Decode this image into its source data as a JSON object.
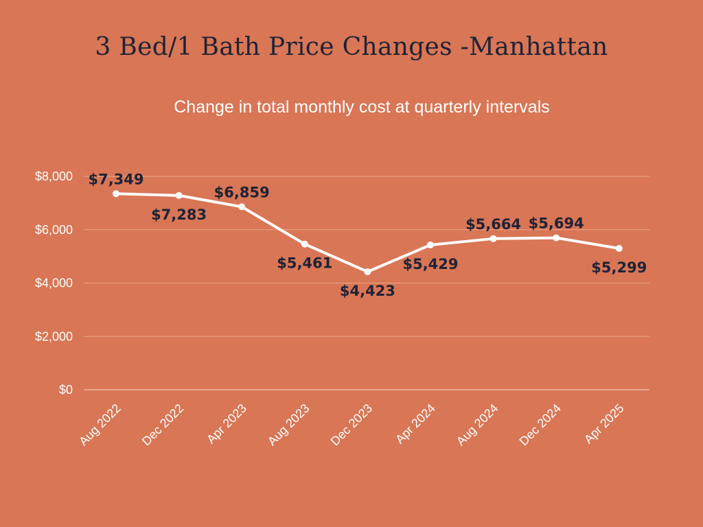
{
  "chart_data": {
    "type": "line",
    "title": "3 Bed/1 Bath Price Changes -Manhattan",
    "subtitle": "Change in total monthly cost at quarterly intervals",
    "xlabel": "",
    "ylabel": "",
    "categories": [
      "Aug 2022",
      "Dec 2022",
      "Apr 2023",
      "Aug 2023",
      "Dec 2023",
      "Apr 2024",
      "Aug 2024",
      "Dec 2024",
      "Apr 2025"
    ],
    "values": [
      7349,
      7283,
      6859,
      5461,
      4423,
      5429,
      5664,
      5694,
      5299
    ],
    "data_labels": [
      "$7,349",
      "$7,283",
      "$6,859",
      "$5,461",
      "$4,423",
      "$5,429",
      "$5,664",
      "$5,694",
      "$5,299"
    ],
    "label_positions": [
      "above",
      "below",
      "above",
      "below",
      "below",
      "below",
      "above",
      "above",
      "below"
    ],
    "yticks": [
      0,
      2000,
      4000,
      6000,
      8000
    ],
    "ytick_labels": [
      "$0",
      "$2,000",
      "$4,000",
      "$6,000",
      "$8,000"
    ],
    "ylim": [
      0,
      8000
    ],
    "grid": true,
    "legend": "none",
    "colors": {
      "background": "#D87655",
      "line": "#FFFFFF",
      "title": "#1F2236",
      "data_label": "#1F2236",
      "gridline": "#EAA58A"
    }
  }
}
